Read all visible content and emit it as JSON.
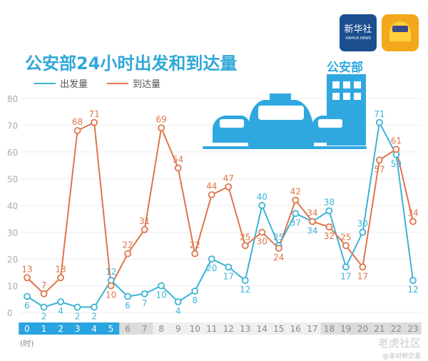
{
  "header": {
    "logo1_text": "新华社",
    "logo1_sub": "XINHUA NEWS",
    "building_label": "公安部"
  },
  "watermark": {
    "main": "老虎社区",
    "sub": "@非对称交易"
  },
  "chart_data": {
    "type": "line",
    "title": "公安部24小时出发和到达量",
    "xlabel": "(时)",
    "ylabel": "",
    "x": [
      0,
      1,
      2,
      3,
      4,
      5,
      6,
      7,
      8,
      9,
      10,
      11,
      12,
      13,
      14,
      15,
      16,
      17,
      18,
      19,
      20,
      21,
      22,
      23
    ],
    "yticks": [
      0,
      10,
      20,
      30,
      40,
      50,
      60,
      70,
      80
    ],
    "ylim": [
      0,
      80
    ],
    "grid": true,
    "legend": "top-left",
    "series": [
      {
        "name": "出发量",
        "color": "#3bb3d6",
        "values": [
          6,
          2,
          4,
          2,
          2,
          12,
          6,
          7,
          10,
          4,
          8,
          20,
          17,
          12,
          40,
          25,
          37,
          34,
          38,
          17,
          30,
          71,
          59,
          12
        ]
      },
      {
        "name": "到达量",
        "color": "#e0744a",
        "values": [
          13,
          7,
          13,
          68,
          71,
          10,
          22,
          31,
          69,
          54,
          22,
          44,
          47,
          25,
          30,
          24,
          42,
          34,
          32,
          25,
          17,
          57,
          61,
          34
        ]
      }
    ],
    "x_bands": [
      {
        "from": 0,
        "to": 5,
        "color": "#2aa4e0"
      },
      {
        "from": 6,
        "to": 7,
        "color": "#dcdcdc"
      },
      {
        "from": 8,
        "to": 17,
        "color": "#efefef"
      },
      {
        "from": 18,
        "to": 23,
        "color": "#dcdcdc"
      }
    ]
  }
}
